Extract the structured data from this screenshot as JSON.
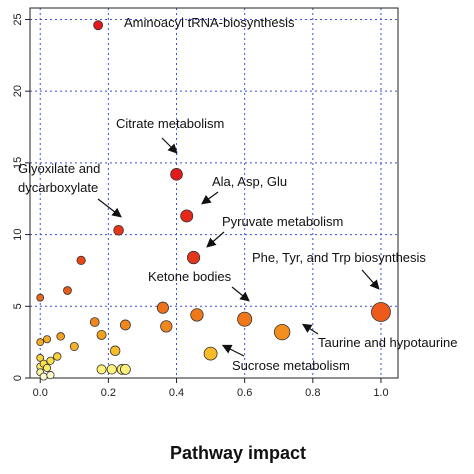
{
  "chart_data": {
    "type": "scatter",
    "title": "",
    "xlabel": "Pathway impact",
    "ylabel": "",
    "xlim": [
      -0.03,
      1.05
    ],
    "ylim": [
      0,
      25.8
    ],
    "xticks": [
      "0.0",
      "0.2",
      "0.4",
      "0.6",
      "0.8",
      "1.0"
    ],
    "xtick_values": [
      0,
      0.2,
      0.4,
      0.6,
      0.8,
      1.0
    ],
    "yticks": [
      "0",
      "5",
      "10",
      "15",
      "20",
      "25"
    ],
    "ytick_values": [
      0,
      5,
      10,
      15,
      20,
      25
    ],
    "grid": true,
    "grid_style": "dotted blue",
    "point_size_encodes": "pathway impact",
    "point_color_scale": "yellow (low) to red (high)",
    "points": [
      {
        "x": 0.17,
        "y": 24.6,
        "color": "#e31a1c"
      },
      {
        "x": 0.4,
        "y": 14.2,
        "color": "#e31a1c"
      },
      {
        "x": 0.43,
        "y": 11.3,
        "color": "#e5281a"
      },
      {
        "x": 0.23,
        "y": 10.3,
        "color": "#e5351a"
      },
      {
        "x": 0.45,
        "y": 8.4,
        "color": "#e5351a"
      },
      {
        "x": 0.12,
        "y": 8.2,
        "color": "#e8471a"
      },
      {
        "x": 0.08,
        "y": 6.1,
        "color": "#ea5a1a"
      },
      {
        "x": 0.0,
        "y": 5.6,
        "color": "#ec681a"
      },
      {
        "x": 0.36,
        "y": 4.9,
        "color": "#ee711b"
      },
      {
        "x": 1.0,
        "y": 4.6,
        "color": "#ee5a1b"
      },
      {
        "x": 0.46,
        "y": 4.4,
        "color": "#ef781b"
      },
      {
        "x": 0.6,
        "y": 4.1,
        "color": "#ef781b"
      },
      {
        "x": 0.16,
        "y": 3.9,
        "color": "#f1861d"
      },
      {
        "x": 0.25,
        "y": 3.7,
        "color": "#f1861d"
      },
      {
        "x": 0.37,
        "y": 3.6,
        "color": "#f1861d"
      },
      {
        "x": 0.71,
        "y": 3.2,
        "color": "#f28e1e"
      },
      {
        "x": 0.18,
        "y": 3.0,
        "color": "#f4a01f"
      },
      {
        "x": 0.06,
        "y": 2.9,
        "color": "#f4a01f"
      },
      {
        "x": 0.02,
        "y": 2.7,
        "color": "#f6ad22"
      },
      {
        "x": 0.0,
        "y": 2.5,
        "color": "#f6ad22"
      },
      {
        "x": 0.1,
        "y": 2.2,
        "color": "#f6b226"
      },
      {
        "x": 0.22,
        "y": 1.9,
        "color": "#f8bc28"
      },
      {
        "x": 0.5,
        "y": 1.7,
        "color": "#f8bc28"
      },
      {
        "x": 0.05,
        "y": 1.5,
        "color": "#fad03a"
      },
      {
        "x": 0.0,
        "y": 1.4,
        "color": "#fad03a"
      },
      {
        "x": 0.03,
        "y": 1.2,
        "color": "#fbe04a"
      },
      {
        "x": 0.01,
        "y": 1.0,
        "color": "#fbe04a"
      },
      {
        "x": 0.0,
        "y": 0.8,
        "color": "#fcec62"
      },
      {
        "x": 0.02,
        "y": 0.7,
        "color": "#fcec62"
      },
      {
        "x": 0.18,
        "y": 0.6,
        "color": "#fdf17a"
      },
      {
        "x": 0.21,
        "y": 0.6,
        "color": "#fdf17a"
      },
      {
        "x": 0.24,
        "y": 0.6,
        "color": "#fdf17a"
      },
      {
        "x": 0.25,
        "y": 0.6,
        "color": "#fdf17a"
      },
      {
        "x": 0.0,
        "y": 0.4,
        "color": "#fef6a2"
      },
      {
        "x": 0.03,
        "y": 0.2,
        "color": "#fffbd0"
      },
      {
        "x": 0.01,
        "y": 0.1,
        "color": "#fffbd0"
      }
    ],
    "annotations": [
      {
        "text": "Aminoacyl tRNA-biosynthesis",
        "x": 0.17,
        "y": 24.6,
        "arrow": false
      },
      {
        "text": "Citrate metabolism",
        "x": 0.4,
        "y": 14.2,
        "arrow": true
      },
      {
        "text": "Ala, Asp, Glu",
        "x": 0.43,
        "y": 11.3,
        "arrow": true
      },
      {
        "text": "Glyoxilate and",
        "x": 0.23,
        "y": 10.3,
        "arrow": false
      },
      {
        "text": "dycarboxylate",
        "x": 0.23,
        "y": 10.3,
        "arrow": true
      },
      {
        "text": "Pyruvate metabolism",
        "x": 0.45,
        "y": 8.4,
        "arrow": true
      },
      {
        "text": "Phe, Tyr, and Trp biosynthesis",
        "x": 1.0,
        "y": 4.6,
        "arrow": true
      },
      {
        "text": "Ketone bodies",
        "x": 0.6,
        "y": 4.1,
        "arrow": true
      },
      {
        "text": "Taurine and hypotaurine",
        "x": 0.71,
        "y": 3.2,
        "arrow": true
      },
      {
        "text": "Sucrose metabolism",
        "x": 0.5,
        "y": 1.7,
        "arrow": true
      }
    ]
  }
}
